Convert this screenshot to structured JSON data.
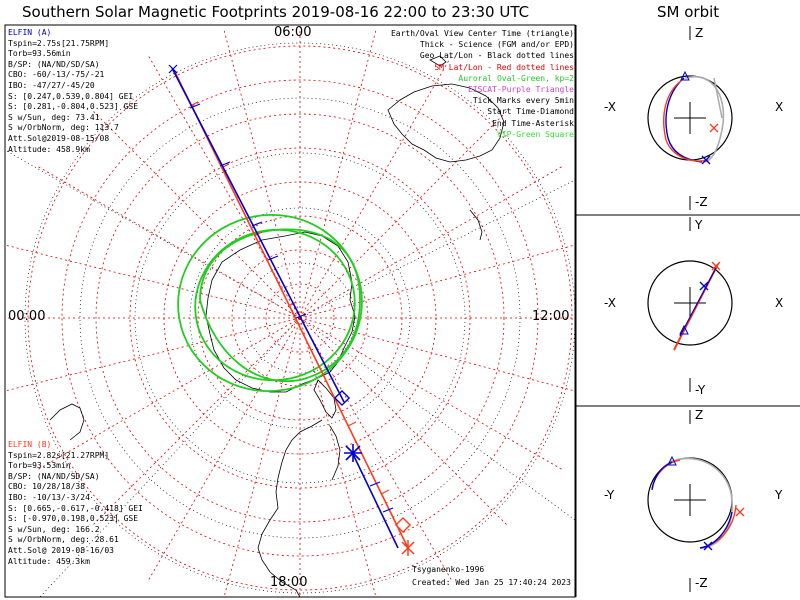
{
  "title": "Southern Solar Magnetic Footprints 2019-08-16 22:00 to 23:30 UTC",
  "orbit_title": "SM orbit",
  "hour_labels": {
    "top": "06:00",
    "left": "00:00",
    "right": "12:00",
    "bottom": "18:00"
  },
  "elfin_a": {
    "name": "ELFIN (A)",
    "lines": [
      "Tspin=2.75s[21.75RPM]",
      "Torb=93.56min",
      "B/SP: (NA/ND/SD/SA)",
      "CBO: -60/-13/-75/-21",
      "IBO: -47/27/-45/20",
      "S: [0.247,0.539,0.804] GEI",
      "S: [0.281,-0.804,0.523] GSE",
      "S w/Sun, deg: 73.41",
      "S w/OrbNorm, deg: 113.7",
      "Att.Sol@2019-08-15/08",
      "Altitude: 458.9km"
    ]
  },
  "elfin_b": {
    "name": "ELFIN (B)",
    "lines": [
      "Tspin=2.82s[21.27RPM]",
      "Torb=93.53min",
      "B/SP: (NA/ND/SD/SA)",
      "CBO: 10/28/18/38",
      "IBO: -10/13/-3/24",
      "S: [0.665,-0.617,-0.418] GEI",
      "S: [-0.970,0.198,0.523] GSE",
      "S w/Sun, deg: 166.2",
      "S w/OrbNorm, deg: 28.61",
      "Att.Sol@ 2019-08-16/03",
      "Altitude: 459.3km"
    ]
  },
  "legend": {
    "l1": "Earth/Oval View Center Time (triangle)",
    "l2": "Thick - Science (FGM and/or EPD)",
    "l3": "Geo Lat/Lon - Black dotted lines",
    "l4": "SM Lat/Lon - Red dotted lines",
    "l5": "Auroral Oval-Green, kp=2",
    "l6": "EISCAT-Purple Triangle",
    "l7": "Tick Marks every 5min",
    "l8": "Start Time-Diamond",
    "l9": "End Time-Asterisk",
    "l10": "VIP-Green Square"
  },
  "footer": {
    "credit": "Tsyganenko-1996",
    "created": "Created: Wed Jan 25 17:40:24 2023"
  },
  "orbit_panels": [
    {
      "top": "Z",
      "bottom": "-Z",
      "left": "-X",
      "right": "X"
    },
    {
      "top": "Y",
      "bottom": "-Y",
      "left": "-X",
      "right": "X"
    },
    {
      "top": "Z",
      "bottom": "-Z",
      "left": "-Y",
      "right": "Y"
    }
  ],
  "colors": {
    "elfin_a": "#0000cc",
    "elfin_b": "#ff3a1a",
    "auroral_oval": "#22cc22",
    "sm_grid": "#e00000",
    "geo_grid": "#000000"
  }
}
